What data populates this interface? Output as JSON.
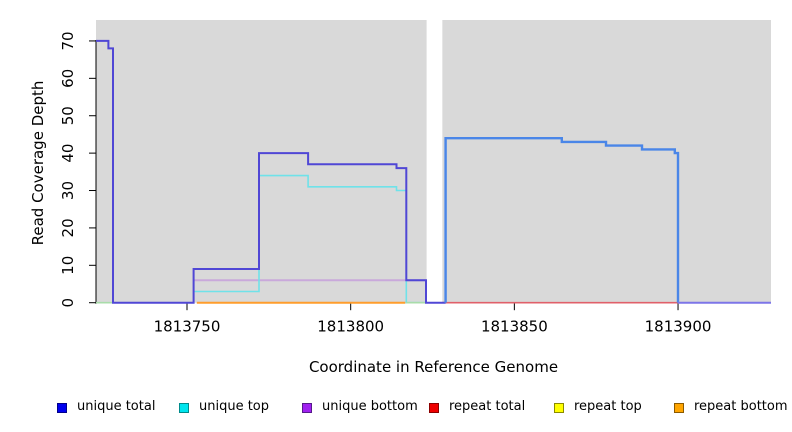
{
  "chart_data": {
    "type": "line",
    "title": "",
    "xlabel": "Coordinate in Reference Genome",
    "ylabel": "Read Coverage Depth",
    "xlim": [
      1813722.2,
      1813928.4
    ],
    "ylim": [
      0,
      75.6
    ],
    "x_ticks": [
      1813750,
      1813800,
      1813850,
      1813900
    ],
    "y_ticks": [
      0,
      10,
      20,
      30,
      40,
      50,
      60,
      70
    ],
    "grid": "off",
    "legend_position": "bottom",
    "plot_bg_color": "#d9d9d9",
    "gap_region": {
      "x_start": 1813823.2,
      "x_end": 1813828.0,
      "color": "#ffffff"
    },
    "series": [
      {
        "name": "unique-bottom",
        "color": "#c9a9db",
        "width": 2,
        "points": [
          [
            1813752,
            6
          ],
          [
            1813823,
            6
          ]
        ]
      },
      {
        "name": "unique-top",
        "color": "#6fe2e9",
        "width": 1.6,
        "points": [
          [
            1813752,
            3
          ],
          [
            1813772,
            3
          ],
          [
            1813772,
            34
          ],
          [
            1813787,
            34
          ],
          [
            1813787,
            31
          ],
          [
            1813814,
            31
          ],
          [
            1813814,
            30
          ],
          [
            1813817,
            30
          ],
          [
            1813817,
            0
          ],
          [
            1813823,
            0
          ]
        ]
      },
      {
        "name": "zero-overlap-left",
        "color": "#a9dcaa",
        "width": 1.6,
        "points": [
          [
            1813722.2,
            0
          ],
          [
            1813727.4,
            0
          ]
        ]
      },
      {
        "name": "zero-overlap-mid",
        "color": "#a9dcaa",
        "width": 1.6,
        "points": [
          [
            1813817,
            0
          ],
          [
            1813823,
            0
          ]
        ]
      },
      {
        "name": "repeat-bottom",
        "color": "#ff9d2c",
        "width": 2,
        "points": [
          [
            1813753,
            0
          ],
          [
            1813816.7,
            0
          ]
        ]
      },
      {
        "name": "repeat-total",
        "color": "#e0606a",
        "width": 1.6,
        "points": [
          [
            1813828,
            0
          ],
          [
            1813900,
            0
          ]
        ]
      },
      {
        "name": "unique-total-left",
        "color": "#5047d5",
        "width": 2,
        "points": [
          [
            1813722.2,
            70
          ],
          [
            1813726,
            70
          ],
          [
            1813726,
            68
          ],
          [
            1813727.4,
            68
          ],
          [
            1813727.4,
            0
          ],
          [
            1813752,
            0
          ],
          [
            1813752,
            9
          ],
          [
            1813772,
            9
          ],
          [
            1813772,
            40
          ],
          [
            1813787,
            40
          ],
          [
            1813787,
            37
          ],
          [
            1813814,
            37
          ],
          [
            1813814,
            36
          ],
          [
            1813817,
            36
          ],
          [
            1813817,
            6
          ],
          [
            1813823,
            6
          ],
          [
            1813823,
            0
          ],
          [
            1813829,
            0
          ]
        ]
      },
      {
        "name": "unique-total-right",
        "color": "#4a86e8",
        "width": 2.4,
        "points": [
          [
            1813829,
            0
          ],
          [
            1813829,
            44
          ],
          [
            1813864.5,
            44
          ],
          [
            1813864.5,
            43
          ],
          [
            1813878,
            43
          ],
          [
            1813878,
            42
          ],
          [
            1813889,
            42
          ],
          [
            1813889,
            41
          ],
          [
            1813899,
            41
          ],
          [
            1813899,
            40
          ],
          [
            1813900,
            40
          ],
          [
            1813900,
            0
          ]
        ]
      },
      {
        "name": "unique-total-tail",
        "color": "#7d75e8",
        "width": 2,
        "points": [
          [
            1813900,
            0
          ],
          [
            1813928.4,
            0
          ]
        ]
      }
    ],
    "legend": [
      {
        "label": "unique total",
        "fill": "#0000ee",
        "border": "#00008b"
      },
      {
        "label": "unique top",
        "fill": "#00e5ee",
        "border": "#008b8b"
      },
      {
        "label": "unique bottom",
        "fill": "#a020f0",
        "border": "#551a8b"
      },
      {
        "label": "repeat total",
        "fill": "#ee0000",
        "border": "#8b0000"
      },
      {
        "label": "repeat top",
        "fill": "#ffff00",
        "border": "#8b8b00"
      },
      {
        "label": "repeat bottom",
        "fill": "#ffa500",
        "border": "#8b5a00"
      }
    ]
  }
}
